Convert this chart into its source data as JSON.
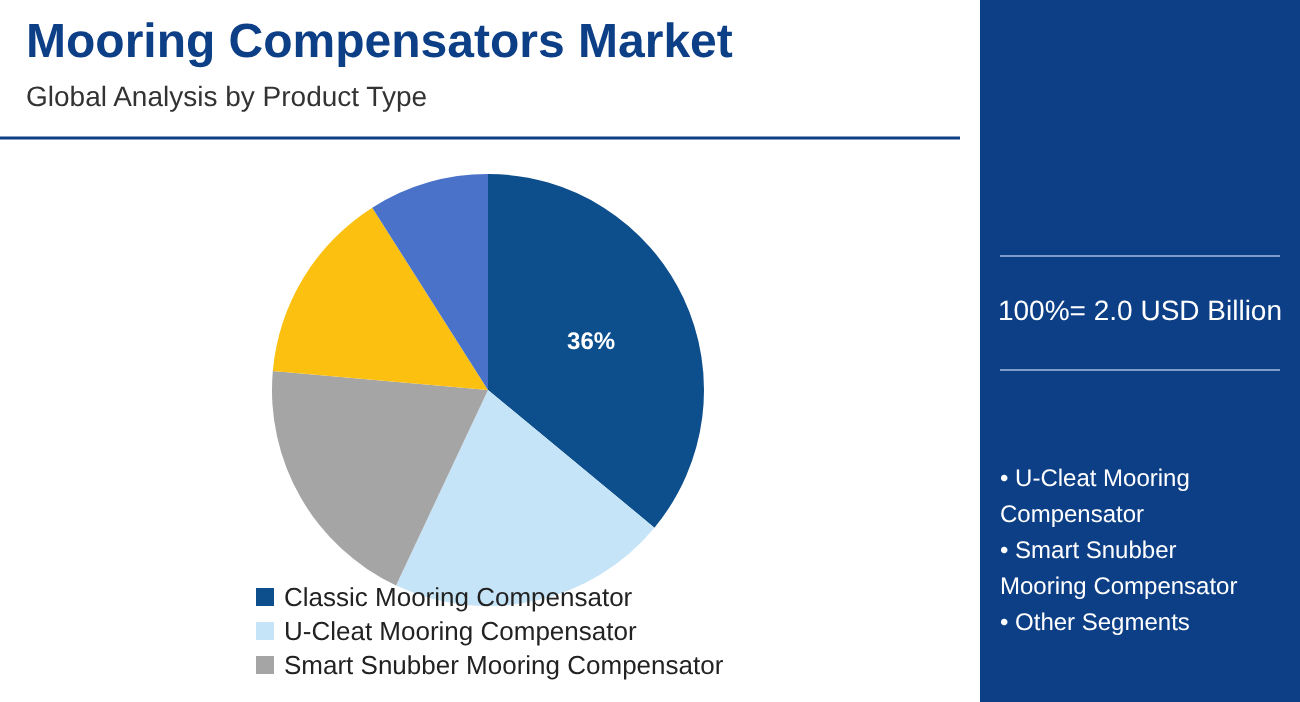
{
  "chart_data": {
    "type": "pie",
    "title": "Mooring Compensators Market",
    "subtitle": "Global Analysis by Product Type",
    "categories": [
      "Classic Mooring Compensator",
      "U-Cleat Mooring Compensator",
      "Smart Snubber Mooring Compensator",
      null,
      null
    ],
    "values": [
      36,
      21,
      19.4,
      14.6,
      9
    ],
    "colors": [
      "#0d4e8c",
      "#c6e4f7",
      "#a5a5a5",
      "#fcc010",
      "#4a72c9"
    ],
    "value_labels": [
      "36%",
      null,
      null,
      null,
      null
    ],
    "legend": "bottom",
    "annotations": [
      "100%= 2.0 USD Billion",
      "• U-Cleat Mooring Compensator",
      "• Smart Snubber Mooring Compensator",
      "• Other Segments"
    ]
  }
}
